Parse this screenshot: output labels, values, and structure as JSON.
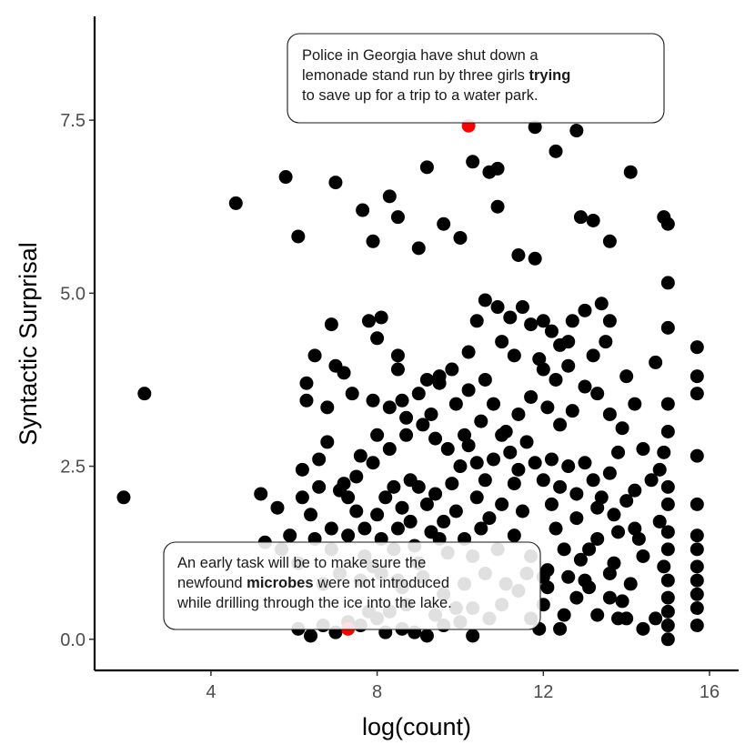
{
  "chart_data": {
    "type": "scatter",
    "xlabel": "log(count)",
    "ylabel": "Syntactic Surprisal",
    "xlim": [
      1.2,
      16.7
    ],
    "ylim": [
      -0.45,
      9.0
    ],
    "xticks": [
      {
        "value": 4,
        "label": "4"
      },
      {
        "value": 8,
        "label": "8"
      },
      {
        "value": 12,
        "label": "12"
      },
      {
        "value": 16,
        "label": "16"
      }
    ],
    "yticks": [
      {
        "value": 0.0,
        "label": "0.0"
      },
      {
        "value": 2.5,
        "label": "2.5"
      },
      {
        "value": 5.0,
        "label": "5.0"
      },
      {
        "value": 7.5,
        "label": "7.5"
      }
    ],
    "grid": false,
    "point_color": "#000000",
    "highlight_color": "#ff0000",
    "highlight_points": [
      {
        "x": 10.2,
        "y": 7.42
      },
      {
        "x": 7.3,
        "y": 0.15
      }
    ],
    "points": [
      [
        1.9,
        2.05
      ],
      [
        2.4,
        3.55
      ],
      [
        4.6,
        6.3
      ],
      [
        5.8,
        6.68
      ],
      [
        6.1,
        5.82
      ],
      [
        7.0,
        6.6
      ],
      [
        7.9,
        5.75
      ],
      [
        7.65,
        6.2
      ],
      [
        8.3,
        6.4
      ],
      [
        8.5,
        6.1
      ],
      [
        9.2,
        6.82
      ],
      [
        10.3,
        6.9
      ],
      [
        10.7,
        6.75
      ],
      [
        10.9,
        6.8
      ],
      [
        11.8,
        7.4
      ],
      [
        12.3,
        7.05
      ],
      [
        12.8,
        7.35
      ],
      [
        14.1,
        6.75
      ],
      [
        10.9,
        6.25
      ],
      [
        10.0,
        5.8
      ],
      [
        12.9,
        6.1
      ],
      [
        13.2,
        6.05
      ],
      [
        13.6,
        5.75
      ],
      [
        9.6,
        6.0
      ],
      [
        9.0,
        5.65
      ],
      [
        11.4,
        5.55
      ],
      [
        11.8,
        5.5
      ],
      [
        14.9,
        6.1
      ],
      [
        15.0,
        6.0
      ],
      [
        15.0,
        5.15
      ],
      [
        6.5,
        4.1
      ],
      [
        6.3,
        3.7
      ],
      [
        6.9,
        4.55
      ],
      [
        7.0,
        3.95
      ],
      [
        7.2,
        3.85
      ],
      [
        7.8,
        4.6
      ],
      [
        8.1,
        4.65
      ],
      [
        8.0,
        4.35
      ],
      [
        8.5,
        4.1
      ],
      [
        8.5,
        3.9
      ],
      [
        9.0,
        3.55
      ],
      [
        9.2,
        3.75
      ],
      [
        9.5,
        3.7
      ],
      [
        9.8,
        3.9
      ],
      [
        10.2,
        4.15
      ],
      [
        10.4,
        4.6
      ],
      [
        10.6,
        4.9
      ],
      [
        10.9,
        4.8
      ],
      [
        11.2,
        4.65
      ],
      [
        11.5,
        4.8
      ],
      [
        11.7,
        4.55
      ],
      [
        12.0,
        4.6
      ],
      [
        12.4,
        4.25
      ],
      [
        12.7,
        4.6
      ],
      [
        13.0,
        4.75
      ],
      [
        13.4,
        4.85
      ],
      [
        13.6,
        4.6
      ],
      [
        14.7,
        4.0
      ],
      [
        15.0,
        4.5
      ],
      [
        15.7,
        4.22
      ],
      [
        15.7,
        3.8
      ],
      [
        15.7,
        3.55
      ],
      [
        15.0,
        3.4
      ],
      [
        15.0,
        3.0
      ],
      [
        14.9,
        2.7
      ],
      [
        14.8,
        2.45
      ],
      [
        15.0,
        2.2
      ],
      [
        15.0,
        1.95
      ],
      [
        14.8,
        1.7
      ],
      [
        15.0,
        1.55
      ],
      [
        15.0,
        1.3
      ],
      [
        14.9,
        1.05
      ],
      [
        15.0,
        0.85
      ],
      [
        15.0,
        0.6
      ],
      [
        15.0,
        0.4
      ],
      [
        15.0,
        0.2
      ],
      [
        15.0,
        0.0
      ],
      [
        15.7,
        1.3
      ],
      [
        15.7,
        1.05
      ],
      [
        15.7,
        0.85
      ],
      [
        15.7,
        0.65
      ],
      [
        15.7,
        0.45
      ],
      [
        15.7,
        0.2
      ],
      [
        15.7,
        1.5
      ],
      [
        15.7,
        1.95
      ],
      [
        15.7,
        2.65
      ],
      [
        14.7,
        0.3
      ],
      [
        14.0,
        0.3
      ],
      [
        13.6,
        0.6
      ],
      [
        13.0,
        0.85
      ],
      [
        12.5,
        0.35
      ],
      [
        12.0,
        0.5
      ],
      [
        11.7,
        0.3
      ],
      [
        11.4,
        0.7
      ],
      [
        11.0,
        0.5
      ],
      [
        10.7,
        0.3
      ],
      [
        10.3,
        0.45
      ],
      [
        10.0,
        0.25
      ],
      [
        9.6,
        0.2
      ],
      [
        9.2,
        0.05
      ],
      [
        8.9,
        0.1
      ],
      [
        8.6,
        0.15
      ],
      [
        8.3,
        0.4
      ],
      [
        8.0,
        0.3
      ],
      [
        7.6,
        0.2
      ],
      [
        7.3,
        0.25
      ],
      [
        7.0,
        0.1
      ],
      [
        6.7,
        0.2
      ],
      [
        6.4,
        0.05
      ],
      [
        6.1,
        0.15
      ],
      [
        5.2,
        2.1
      ],
      [
        5.6,
        1.9
      ],
      [
        5.9,
        1.5
      ],
      [
        6.2,
        2.05
      ],
      [
        6.4,
        1.8
      ],
      [
        6.6,
        2.6
      ],
      [
        6.8,
        2.85
      ],
      [
        7.2,
        2.25
      ],
      [
        7.3,
        2.05
      ],
      [
        7.5,
        1.85
      ],
      [
        7.7,
        1.6
      ],
      [
        8.0,
        1.8
      ],
      [
        8.2,
        2.05
      ],
      [
        8.4,
        2.2
      ],
      [
        8.6,
        1.9
      ],
      [
        8.8,
        2.3
      ],
      [
        9.0,
        2.2
      ],
      [
        9.2,
        1.95
      ],
      [
        9.4,
        2.1
      ],
      [
        9.6,
        1.7
      ],
      [
        9.8,
        2.25
      ],
      [
        10.0,
        2.5
      ],
      [
        10.2,
        2.8
      ],
      [
        10.4,
        2.55
      ],
      [
        10.6,
        2.3
      ],
      [
        10.8,
        2.6
      ],
      [
        11.0,
        2.95
      ],
      [
        11.2,
        2.7
      ],
      [
        11.4,
        2.45
      ],
      [
        11.6,
        2.85
      ],
      [
        11.8,
        2.55
      ],
      [
        12.0,
        2.3
      ],
      [
        12.2,
        2.6
      ],
      [
        12.4,
        2.2
      ],
      [
        12.6,
        2.5
      ],
      [
        12.8,
        2.1
      ],
      [
        13.0,
        2.55
      ],
      [
        13.2,
        2.3
      ],
      [
        13.4,
        2.05
      ],
      [
        13.6,
        2.4
      ],
      [
        13.8,
        2.7
      ],
      [
        14.0,
        2.0
      ],
      [
        14.2,
        1.6
      ],
      [
        14.4,
        1.2
      ],
      [
        13.7,
        1.8
      ],
      [
        13.3,
        1.45
      ],
      [
        12.9,
        1.15
      ],
      [
        12.5,
        1.3
      ],
      [
        12.1,
        1.0
      ],
      [
        11.7,
        1.2
      ],
      [
        11.3,
        1.5
      ],
      [
        10.9,
        1.3
      ],
      [
        10.5,
        1.6
      ],
      [
        10.1,
        1.45
      ],
      [
        9.7,
        1.25
      ],
      [
        9.3,
        1.55
      ],
      [
        8.9,
        1.35
      ],
      [
        8.5,
        1.6
      ],
      [
        8.1,
        1.45
      ],
      [
        7.7,
        1.2
      ],
      [
        7.3,
        1.5
      ],
      [
        6.9,
        1.3
      ],
      [
        6.5,
        1.45
      ],
      [
        6.1,
        1.1
      ],
      [
        5.7,
        1.3
      ],
      [
        5.3,
        1.4
      ],
      [
        6.3,
        3.45
      ],
      [
        6.8,
        3.35
      ],
      [
        7.4,
        3.55
      ],
      [
        7.9,
        3.45
      ],
      [
        8.3,
        3.35
      ],
      [
        8.7,
        3.2
      ],
      [
        9.1,
        3.1
      ],
      [
        9.4,
        2.9
      ],
      [
        9.7,
        2.75
      ],
      [
        10.1,
        2.95
      ],
      [
        10.5,
        3.15
      ],
      [
        10.8,
        3.4
      ],
      [
        11.1,
        3.0
      ],
      [
        11.4,
        3.25
      ],
      [
        11.7,
        3.5
      ],
      [
        12.1,
        3.35
      ],
      [
        12.4,
        3.1
      ],
      [
        12.7,
        3.3
      ],
      [
        13.0,
        3.65
      ],
      [
        13.3,
        3.55
      ],
      [
        13.6,
        3.25
      ],
      [
        13.9,
        3.05
      ],
      [
        14.2,
        3.4
      ],
      [
        12.0,
        3.9
      ],
      [
        12.3,
        3.75
      ],
      [
        12.6,
        3.95
      ],
      [
        13.2,
        4.1
      ],
      [
        11.3,
        4.1
      ],
      [
        10.6,
        3.75
      ],
      [
        9.9,
        3.4
      ],
      [
        9.3,
        3.25
      ],
      [
        8.7,
        2.95
      ],
      [
        8.3,
        2.75
      ],
      [
        7.9,
        2.55
      ],
      [
        7.5,
        2.35
      ],
      [
        7.1,
        2.15
      ],
      [
        6.6,
        2.2
      ],
      [
        6.2,
        2.45
      ],
      [
        7.6,
        0.85
      ],
      [
        8.1,
        0.95
      ],
      [
        8.6,
        0.75
      ],
      [
        9.1,
        0.9
      ],
      [
        9.6,
        0.65
      ],
      [
        10.1,
        0.8
      ],
      [
        10.6,
        0.95
      ],
      [
        11.1,
        0.8
      ],
      [
        11.6,
        0.95
      ],
      [
        12.1,
        0.75
      ],
      [
        12.6,
        0.9
      ],
      [
        13.1,
        0.75
      ],
      [
        13.6,
        0.95
      ],
      [
        14.1,
        0.8
      ],
      [
        12.3,
        1.6
      ],
      [
        12.8,
        1.75
      ],
      [
        13.3,
        1.9
      ],
      [
        13.8,
        1.55
      ],
      [
        11.5,
        1.85
      ],
      [
        11.0,
        1.95
      ],
      [
        10.4,
        2.05
      ],
      [
        9.9,
        1.85
      ],
      [
        9.5,
        1.45
      ],
      [
        8.8,
        1.7
      ],
      [
        8.4,
        1.3
      ],
      [
        7.9,
        1.05
      ],
      [
        7.1,
        0.95
      ],
      [
        6.7,
        0.8
      ],
      [
        12.4,
        0.15
      ],
      [
        13.3,
        0.35
      ],
      [
        13.9,
        0.55
      ],
      [
        14.4,
        0.15
      ],
      [
        12.8,
        0.6
      ],
      [
        11.9,
        0.15
      ],
      [
        10.3,
        0.05
      ],
      [
        9.4,
        0.35
      ],
      [
        8.2,
        0.1
      ],
      [
        7.8,
        0.4
      ],
      [
        13.1,
        1.3
      ],
      [
        13.7,
        1.1
      ],
      [
        14.3,
        1.45
      ],
      [
        12.2,
        1.95
      ],
      [
        11.3,
        2.25
      ],
      [
        10.7,
        1.75
      ],
      [
        10.3,
        1.2
      ],
      [
        9.9,
        0.45
      ],
      [
        8.7,
        0.5
      ],
      [
        8.5,
        0.85
      ],
      [
        9.0,
        1.1
      ],
      [
        6.9,
        1.6
      ],
      [
        7.6,
        2.65
      ],
      [
        8.0,
        2.95
      ],
      [
        8.6,
        3.45
      ],
      [
        9.5,
        3.8
      ],
      [
        10.2,
        3.6
      ],
      [
        11.0,
        4.3
      ],
      [
        11.9,
        4.05
      ],
      [
        12.2,
        4.45
      ],
      [
        12.6,
        4.3
      ],
      [
        13.5,
        4.3
      ],
      [
        14.0,
        3.8
      ],
      [
        14.4,
        2.75
      ],
      [
        14.6,
        2.3
      ],
      [
        14.2,
        2.15
      ],
      [
        13.8,
        0.3
      ],
      [
        12.0,
        0.9
      ]
    ],
    "annotations": [
      {
        "lines": [
          [
            {
              "text": "Police in Georgia have shut down a",
              "bold": false
            }
          ],
          [
            {
              "text": "lemonade stand run by three girls ",
              "bold": false
            },
            {
              "text": "trying",
              "bold": true
            }
          ],
          [
            {
              "text": "to save up for a trip to a water park.",
              "bold": false
            }
          ]
        ]
      },
      {
        "lines": [
          [
            {
              "text": "An early task will be to make sure the",
              "bold": false
            }
          ],
          [
            {
              "text": "newfound ",
              "bold": false
            },
            {
              "text": "microbes",
              "bold": true
            },
            {
              "text": " were not introduced",
              "bold": false
            }
          ],
          [
            {
              "text": "while drilling through the ice into the lake.",
              "bold": false
            }
          ]
        ]
      }
    ]
  }
}
